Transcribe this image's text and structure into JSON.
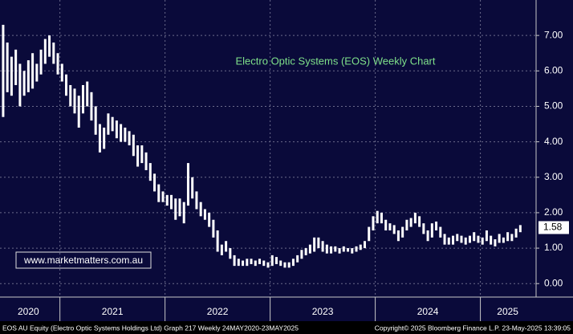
{
  "chart_data": {
    "type": "range-bar",
    "title": "Electro Optic Systems (EOS) Weekly Chart",
    "watermark": "www.marketmatters.com.au",
    "footer_left": "EOS AU Equity (Electro Optic Systems Holdings Ltd) Graph 217  Weekly 24MAY2020-23MAY2025",
    "footer_right": "Copyright© 2025 Bloomberg Finance L.P.   23-May-2025 13:39:05",
    "color": "#ffffff",
    "grid": true,
    "xlim": [
      2020.43,
      2025.53
    ],
    "ylim": [
      -0.38,
      8.0
    ],
    "yticks": [
      {
        "value": 0,
        "label": "0.00"
      },
      {
        "value": 1,
        "label": "1.00"
      },
      {
        "value": 2,
        "label": "2.00"
      },
      {
        "value": 3,
        "label": "3.00"
      },
      {
        "value": 4,
        "label": "4.00"
      },
      {
        "value": 5,
        "label": "5.00"
      },
      {
        "value": 6,
        "label": "6.00"
      },
      {
        "value": 7,
        "label": "7.00"
      }
    ],
    "xticks": [
      {
        "value": 2020.7,
        "label": "2020"
      },
      {
        "value": 2021.5,
        "label": "2021"
      },
      {
        "value": 2022.5,
        "label": "2022"
      },
      {
        "value": 2023.5,
        "label": "2023"
      },
      {
        "value": 2024.5,
        "label": "2024"
      },
      {
        "value": 2025.26,
        "label": "2025"
      }
    ],
    "xgrid": [
      2021,
      2022,
      2023,
      2024,
      2025
    ],
    "last_value": 1.58,
    "x": [
      2020.46,
      2020.5,
      2020.54,
      2020.58,
      2020.62,
      2020.66,
      2020.7,
      2020.74,
      2020.78,
      2020.82,
      2020.86,
      2020.9,
      2020.94,
      2020.98,
      2021.02,
      2021.06,
      2021.1,
      2021.14,
      2021.18,
      2021.22,
      2021.26,
      2021.3,
      2021.34,
      2021.38,
      2021.42,
      2021.46,
      2021.5,
      2021.54,
      2021.58,
      2021.62,
      2021.66,
      2021.7,
      2021.74,
      2021.78,
      2021.82,
      2021.86,
      2021.9,
      2021.94,
      2021.98,
      2022.02,
      2022.06,
      2022.1,
      2022.14,
      2022.18,
      2022.22,
      2022.26,
      2022.3,
      2022.34,
      2022.38,
      2022.42,
      2022.46,
      2022.5,
      2022.54,
      2022.58,
      2022.62,
      2022.66,
      2022.7,
      2022.74,
      2022.78,
      2022.82,
      2022.86,
      2022.9,
      2022.94,
      2022.98,
      2023.02,
      2023.06,
      2023.1,
      2023.14,
      2023.18,
      2023.22,
      2023.26,
      2023.3,
      2023.34,
      2023.38,
      2023.42,
      2023.46,
      2023.5,
      2023.54,
      2023.58,
      2023.62,
      2023.66,
      2023.7,
      2023.74,
      2023.78,
      2023.82,
      2023.86,
      2023.9,
      2023.94,
      2023.98,
      2024.02,
      2024.06,
      2024.1,
      2024.14,
      2024.18,
      2024.22,
      2024.26,
      2024.3,
      2024.34,
      2024.38,
      2024.42,
      2024.46,
      2024.5,
      2024.54,
      2024.58,
      2024.62,
      2024.66,
      2024.7,
      2024.74,
      2024.78,
      2024.82,
      2024.86,
      2024.9,
      2024.94,
      2024.98,
      2025.02,
      2025.06,
      2025.1,
      2025.14,
      2025.18,
      2025.22,
      2025.26,
      2025.3,
      2025.34,
      2025.38
    ],
    "high": [
      7.3,
      6.8,
      6.4,
      6.6,
      6.2,
      6.0,
      6.3,
      6.5,
      6.2,
      6.6,
      6.9,
      7.0,
      6.8,
      6.5,
      6.2,
      5.9,
      5.6,
      5.5,
      5.3,
      5.6,
      5.7,
      5.4,
      5.0,
      4.5,
      4.4,
      4.8,
      4.7,
      4.6,
      4.5,
      4.4,
      4.3,
      4.2,
      3.9,
      3.9,
      3.7,
      3.4,
      3.1,
      2.8,
      2.6,
      2.5,
      2.5,
      2.4,
      2.4,
      2.3,
      3.4,
      3.0,
      2.6,
      2.3,
      2.1,
      2.0,
      1.8,
      1.5,
      1.1,
      1.2,
      1.0,
      0.8,
      0.7,
      0.65,
      0.7,
      0.7,
      0.65,
      0.7,
      0.65,
      0.6,
      0.8,
      0.75,
      0.65,
      0.6,
      0.6,
      0.7,
      0.8,
      0.95,
      1.0,
      1.1,
      1.3,
      1.3,
      1.2,
      1.1,
      1.05,
      1.05,
      1.0,
      1.05,
      1.0,
      1.0,
      1.05,
      1.1,
      1.2,
      1.6,
      1.9,
      2.05,
      2.0,
      1.8,
      1.7,
      1.65,
      1.5,
      1.6,
      1.8,
      1.85,
      2.0,
      1.9,
      1.7,
      1.5,
      1.7,
      1.75,
      1.6,
      1.4,
      1.3,
      1.35,
      1.4,
      1.35,
      1.3,
      1.35,
      1.45,
      1.35,
      1.3,
      1.5,
      1.35,
      1.25,
      1.4,
      1.3,
      1.45,
      1.4,
      1.55,
      1.65
    ],
    "low": [
      4.7,
      5.4,
      5.3,
      5.6,
      5.0,
      5.3,
      5.4,
      5.5,
      5.7,
      5.9,
      6.2,
      6.4,
      6.2,
      5.9,
      5.7,
      5.3,
      5.0,
      4.8,
      4.4,
      4.8,
      5.0,
      4.6,
      4.2,
      3.7,
      3.8,
      4.2,
      4.3,
      4.1,
      4.0,
      4.0,
      3.9,
      3.6,
      3.3,
      3.4,
      3.2,
      2.9,
      2.6,
      2.3,
      2.3,
      2.2,
      2.1,
      1.8,
      1.9,
      1.7,
      2.2,
      2.4,
      2.1,
      1.9,
      1.8,
      1.6,
      1.3,
      0.9,
      0.8,
      0.9,
      0.7,
      0.5,
      0.5,
      0.5,
      0.5,
      0.55,
      0.5,
      0.55,
      0.5,
      0.45,
      0.5,
      0.55,
      0.5,
      0.45,
      0.45,
      0.5,
      0.6,
      0.7,
      0.8,
      0.85,
      0.9,
      1.0,
      0.9,
      0.85,
      0.85,
      0.9,
      0.85,
      0.9,
      0.9,
      0.85,
      0.9,
      0.95,
      1.0,
      1.2,
      1.5,
      1.7,
      1.7,
      1.5,
      1.5,
      1.4,
      1.2,
      1.3,
      1.5,
      1.6,
      1.7,
      1.6,
      1.4,
      1.2,
      1.3,
      1.5,
      1.3,
      1.1,
      1.1,
      1.1,
      1.2,
      1.15,
      1.1,
      1.15,
      1.2,
      1.15,
      1.1,
      1.2,
      1.1,
      1.05,
      1.15,
      1.15,
      1.2,
      1.2,
      1.3,
      1.45
    ]
  }
}
